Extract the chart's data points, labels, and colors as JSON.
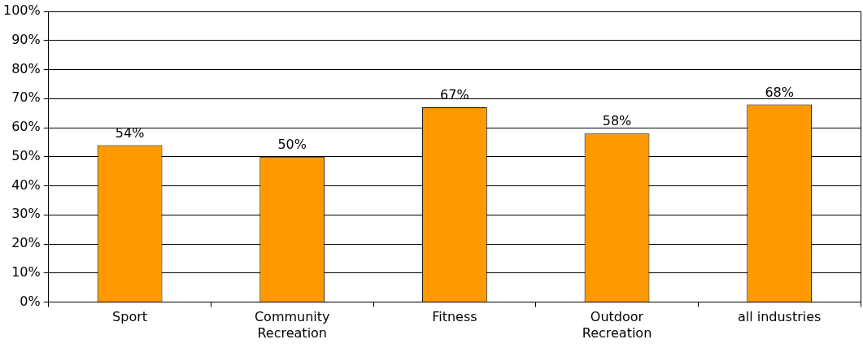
{
  "chart_data": {
    "type": "bar",
    "categories": [
      "Sport",
      "Community Recreation",
      "Fitness",
      "Outdoor Recreation",
      "all industries"
    ],
    "values": [
      54,
      50,
      67,
      58,
      68
    ],
    "color": "#ff9900",
    "value_labels": [
      "54%",
      "50%",
      "67%",
      "58%",
      "68%"
    ],
    "ylim": [
      0,
      100
    ],
    "yticks": [
      {
        "value": 0,
        "label": "0%"
      },
      {
        "value": 10,
        "label": "10%"
      },
      {
        "value": 20,
        "label": "20%"
      },
      {
        "value": 30,
        "label": "30%"
      },
      {
        "value": 40,
        "label": "40%"
      },
      {
        "value": 50,
        "label": "50%"
      },
      {
        "value": 60,
        "label": "60%"
      },
      {
        "value": 70,
        "label": "70%"
      },
      {
        "value": 80,
        "label": "80%"
      },
      {
        "value": 90,
        "label": "90%"
      },
      {
        "value": 100,
        "label": "100%"
      }
    ],
    "grid": "y",
    "legend": false
  }
}
